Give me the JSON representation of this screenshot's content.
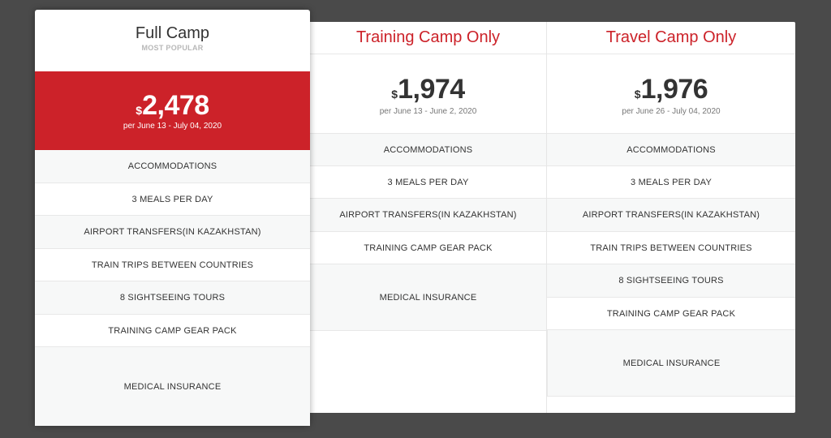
{
  "plans": {
    "full": {
      "title": "Full Camp",
      "badge": "MOST POPULAR",
      "currency": "$",
      "price": "2,478",
      "period": "per June 13 - July 04, 2020",
      "features": [
        "ACCOMMODATIONS",
        "3 MEALS PER DAY",
        "AIRPORT TRANSFERS(IN KAZAKHSTAN)",
        "TRAIN TRIPS BETWEEN COUNTRIES",
        "8 SIGHTSEEING TOURS",
        "TRAINING CAMP GEAR PACK",
        "MEDICAL INSURANCE"
      ]
    },
    "training": {
      "title": "Training Camp Only",
      "currency": "$",
      "price": "1,974",
      "period": "per June 13 - June 2, 2020",
      "features": [
        "ACCOMMODATIONS",
        "3 MEALS PER DAY",
        "AIRPORT TRANSFERS(IN KAZAKHSTAN)",
        "TRAINING CAMP GEAR PACK",
        "MEDICAL INSURANCE"
      ]
    },
    "travel": {
      "title": "Travel Camp Only",
      "currency": "$",
      "price": "1,976",
      "period": "per June 26 - July 04, 2020",
      "features": [
        "ACCOMMODATIONS",
        "3 MEALS PER DAY",
        "AIRPORT TRANSFERS(IN KAZAKHSTAN)",
        "TRAIN TRIPS BETWEEN COUNTRIES",
        "8 SIGHTSEEING TOURS",
        "TRAINING CAMP GEAR PACK",
        "MEDICAL INSURANCE"
      ]
    }
  },
  "colors": {
    "accent": "#cc2229",
    "background": "#4a4a4a"
  }
}
